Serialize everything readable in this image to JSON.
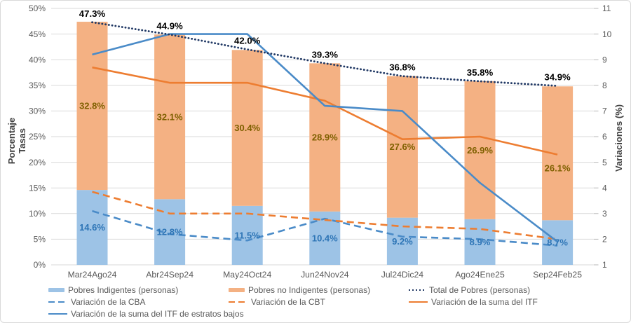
{
  "chart_data": {
    "type": "combo-stacked-bar-line",
    "title": "",
    "categories": [
      "Mar24Ago24",
      "Abr24Sep24",
      "May24Oct24",
      "Jun24Nov24",
      "Jul24Dic24",
      "Ago24Ene25",
      "Sep24Feb25"
    ],
    "left_axis": {
      "title": "Porcentaje Tasas",
      "title_lines": [
        "Porcentaje",
        "Tasas"
      ],
      "min": 0,
      "max": 50,
      "step": 5,
      "tick_labels": [
        "0%",
        "5%",
        "10%",
        "15%",
        "20%",
        "25%",
        "30%",
        "35%",
        "40%",
        "45%",
        "50%"
      ]
    },
    "right_axis": {
      "title": "Variaciones (%)",
      "min": 1,
      "max": 11,
      "step": 1,
      "tick_labels": [
        "1",
        "2",
        "3",
        "4",
        "5",
        "6",
        "7",
        "8",
        "9",
        "10",
        "11"
      ]
    },
    "grid": true,
    "legend_position": "bottom",
    "series": [
      {
        "name": "Pobres Indigentes (personas)",
        "type": "bar",
        "dash": "none",
        "axis": "left",
        "color": "#9DC3E6",
        "label_color": "#2E75B6",
        "values": [
          14.6,
          12.8,
          11.5,
          10.4,
          9.2,
          8.9,
          8.7
        ],
        "data_labels": [
          "14.6%",
          "12.8%",
          "11.5%",
          "10.4%",
          "9.2%",
          "8.9%",
          "8.7%"
        ]
      },
      {
        "name": "Pobres no Indigentes (personas)",
        "type": "bar",
        "dash": "none",
        "axis": "left",
        "color": "#F4B183",
        "label_color": "#7F6000",
        "values": [
          32.8,
          32.1,
          30.4,
          28.9,
          27.6,
          26.9,
          26.1
        ],
        "data_labels": [
          "32.8%",
          "32.1%",
          "30.4%",
          "28.9%",
          "27.6%",
          "26.9%",
          "26.1%"
        ]
      },
      {
        "name": "Total de Pobres (personas)",
        "type": "line",
        "dash": "dotted",
        "axis": "left",
        "color": "#203864",
        "label_color": "#000000",
        "values": [
          47.3,
          44.9,
          42.0,
          39.3,
          36.8,
          35.8,
          34.9
        ],
        "data_labels": [
          "47.3%",
          "44.9%",
          "42.0%",
          "39.3%",
          "36.8%",
          "35.8%",
          "34.9%"
        ]
      },
      {
        "name": "Variación de la CBA",
        "type": "line",
        "dash": "dashed",
        "axis": "right",
        "color": "#4A8BC8",
        "values": [
          3.1,
          2.2,
          1.95,
          2.8,
          2.1,
          2.0,
          1.75
        ],
        "data_labels": []
      },
      {
        "name": "Variación de la CBT",
        "type": "line",
        "dash": "dashed",
        "axis": "right",
        "color": "#ED7D31",
        "values": [
          3.85,
          3.0,
          3.0,
          2.75,
          2.5,
          2.4,
          2.0
        ],
        "data_labels": []
      },
      {
        "name": "Variación de la suma del ITF",
        "type": "line",
        "dash": "solid",
        "axis": "right",
        "color": "#ED7D31",
        "values": [
          8.7,
          8.1,
          8.1,
          7.4,
          5.9,
          6.0,
          5.3
        ],
        "data_labels": []
      },
      {
        "name": "Variación de la suma del ITF de estratos bajos",
        "type": "line",
        "dash": "solid",
        "axis": "right",
        "color": "#4A8BC8",
        "values": [
          9.2,
          10.0,
          10.0,
          7.2,
          7.0,
          4.2,
          1.9
        ],
        "data_labels": []
      }
    ],
    "colors": {
      "grid": "#D9D9D9",
      "axis_tick": "#B7B7B7",
      "axis_text": "#595959",
      "axis_title": "#404040",
      "background": "#FFFFFF",
      "border": "#D9D9D9"
    }
  }
}
